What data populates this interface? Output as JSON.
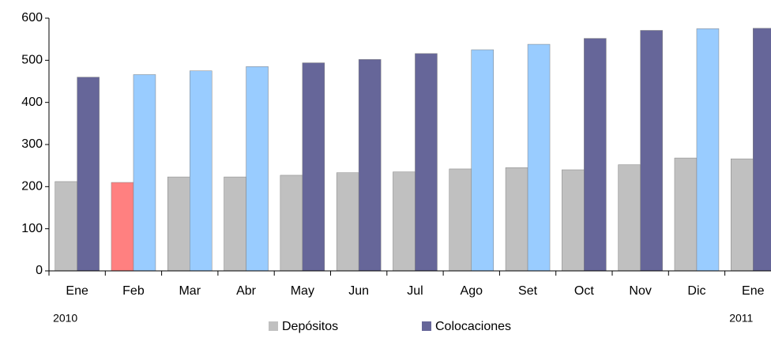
{
  "chart_data": {
    "type": "bar",
    "categories": [
      "Ene",
      "Feb",
      "Mar",
      "Abr",
      "May",
      "Jun",
      "Jul",
      "Ago",
      "Set",
      "Oct",
      "Nov",
      "Dic",
      "Ene"
    ],
    "categories2": [
      "2010",
      null,
      null,
      null,
      null,
      null,
      null,
      null,
      null,
      null,
      null,
      null,
      "2011"
    ],
    "series": [
      {
        "name": "Depósitos",
        "color": "#c0c0c0",
        "colors": [
          "#c0c0c0",
          "#ff8080",
          "#c0c0c0",
          "#c0c0c0",
          "#c0c0c0",
          "#c0c0c0",
          "#c0c0c0",
          "#c0c0c0",
          "#c0c0c0",
          "#c0c0c0",
          "#c0c0c0",
          "#c0c0c0",
          "#c0c0c0"
        ],
        "values": [
          212,
          210,
          223,
          223,
          227,
          233,
          235,
          242,
          245,
          240,
          252,
          268,
          266
        ]
      },
      {
        "name": "Colocaciones",
        "color": "#666699",
        "colors": [
          "#666699",
          "#99ccff",
          "#99ccff",
          "#99ccff",
          "#666699",
          "#666699",
          "#666699",
          "#99ccff",
          "#99ccff",
          "#666699",
          "#666699",
          "#99ccff",
          "#666699"
        ],
        "values": [
          460,
          466,
          475,
          485,
          494,
          502,
          516,
          525,
          538,
          552,
          571,
          575,
          576
        ]
      }
    ],
    "ylim": [
      0,
      600
    ],
    "yticks": [
      0,
      100,
      200,
      300,
      400,
      500,
      600
    ],
    "grid": false
  }
}
